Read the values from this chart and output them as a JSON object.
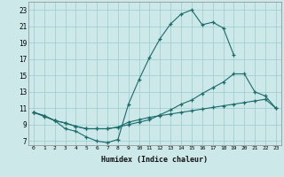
{
  "xlabel": "Humidex (Indice chaleur)",
  "bg_color": "#cce8e8",
  "grid_color": "#99cccc",
  "line_color": "#1a6b6b",
  "xlim": [
    -0.5,
    23.5
  ],
  "ylim": [
    6.5,
    24.0
  ],
  "xticks": [
    0,
    1,
    2,
    3,
    4,
    5,
    6,
    7,
    8,
    9,
    10,
    11,
    12,
    13,
    14,
    15,
    16,
    17,
    18,
    19,
    20,
    21,
    22,
    23
  ],
  "yticks": [
    7,
    9,
    11,
    13,
    15,
    17,
    19,
    21,
    23
  ],
  "line1_x": [
    0,
    1,
    2,
    3,
    4,
    5,
    6,
    7,
    8,
    9,
    10,
    11,
    12,
    13,
    14,
    15,
    16,
    17,
    18,
    19,
    20,
    21,
    22,
    23
  ],
  "line1_y": [
    10.5,
    10.0,
    9.5,
    8.5,
    8.2,
    7.5,
    7.0,
    6.8,
    7.2,
    11.5,
    14.5,
    17.2,
    19.5,
    21.3,
    22.5,
    23.0,
    21.2,
    21.5,
    20.8,
    17.5,
    null,
    null,
    null,
    null
  ],
  "line2_x": [
    0,
    1,
    2,
    3,
    4,
    5,
    6,
    7,
    8,
    9,
    10,
    11,
    12,
    13,
    14,
    15,
    16,
    17,
    18,
    19,
    20,
    21,
    22,
    23
  ],
  "line2_y": [
    10.5,
    10.1,
    9.5,
    9.2,
    8.8,
    8.5,
    8.5,
    8.5,
    8.7,
    9.0,
    9.3,
    9.6,
    10.2,
    10.8,
    11.5,
    12.0,
    12.8,
    13.5,
    14.2,
    15.2,
    15.2,
    13.0,
    12.5,
    11.0
  ],
  "line3_x": [
    0,
    1,
    2,
    3,
    4,
    5,
    6,
    7,
    8,
    9,
    10,
    11,
    12,
    13,
    14,
    15,
    16,
    17,
    18,
    19,
    20,
    21,
    22,
    23
  ],
  "line3_y": [
    10.5,
    10.1,
    9.5,
    9.2,
    8.8,
    8.5,
    8.5,
    8.5,
    8.7,
    9.3,
    9.6,
    9.9,
    10.1,
    10.3,
    10.5,
    10.7,
    10.9,
    11.1,
    11.3,
    11.5,
    11.7,
    11.9,
    12.1,
    11.0
  ]
}
